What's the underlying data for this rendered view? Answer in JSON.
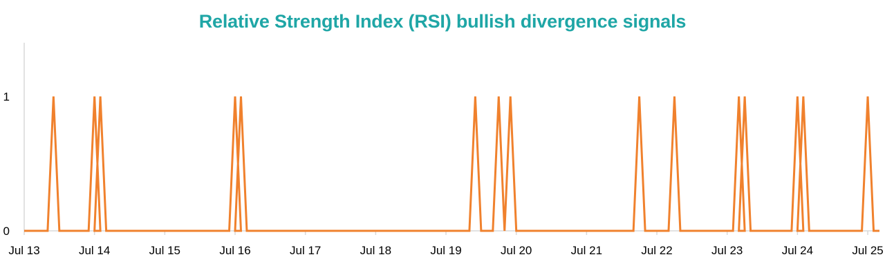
{
  "chart_data": {
    "type": "line",
    "title": "Relative Strength Index (RSI) bullish divergence signals",
    "xlabel": "",
    "ylabel": "",
    "x_tick_labels": [
      "Jul 13",
      "Jul 14",
      "Jul 15",
      "Jul 16",
      "Jul 17",
      "Jul 18",
      "Jul 19",
      "Jul 20",
      "Jul 21",
      "Jul 22",
      "Jul 23",
      "Jul 24",
      "Jul 25"
    ],
    "x_tick_years": [
      2013,
      2014,
      2015,
      2016,
      2017,
      2018,
      2019,
      2020,
      2021,
      2022,
      2023,
      2024,
      2025
    ],
    "y_tick_labels": [
      "0",
      "1"
    ],
    "y_ticks": [
      0,
      1
    ],
    "xlim": [
      "2013-07",
      "2025-09"
    ],
    "ylim": [
      0,
      1.4
    ],
    "grid": false,
    "legend": "none",
    "series": [
      {
        "color": "#f0812d",
        "signal_dates": [
          "2013-12",
          "2014-07",
          "2014-08",
          "2016-07",
          "2016-08",
          "2019-12",
          "2020-04",
          "2020-06",
          "2022-04",
          "2022-10",
          "2023-09",
          "2023-10",
          "2024-07",
          "2024-08",
          "2025-07"
        ]
      }
    ]
  }
}
